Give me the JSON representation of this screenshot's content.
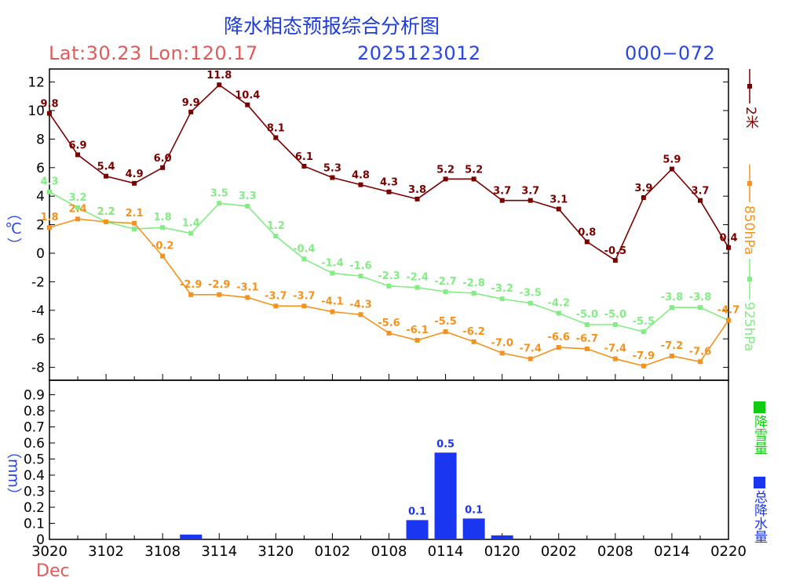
{
  "header": {
    "title": "降水相态预报综合分析图",
    "location": "Lat:30.23 Lon:120.17",
    "run": "2025123012",
    "range": "000−072"
  },
  "colors": {
    "t2m": "#7a0000",
    "t850": "#f5921e",
    "t925": "#84ec84",
    "snow": "#11cc11",
    "total": "#1a36f0",
    "title": "#1e3cdc",
    "loc": "#e05a5a"
  },
  "legend": {
    "t2m": "2米",
    "t850": "850hPa",
    "t925": "925hPa",
    "snow": "降雪量",
    "total": "总降水量"
  },
  "chart_data": [
    {
      "type": "line",
      "ylabel": "（℃）",
      "ylim": [
        -9,
        13
      ],
      "yticks": [
        12,
        10,
        8,
        6,
        4,
        2,
        0,
        -2,
        -4,
        -6,
        -8
      ],
      "x": [
        0,
        3,
        6,
        9,
        12,
        15,
        18,
        21,
        24,
        27,
        30,
        33,
        36,
        39,
        42,
        45,
        48,
        51,
        54,
        57,
        60,
        63,
        66,
        69,
        72
      ],
      "series": [
        {
          "name": "2米",
          "values": [
            9.8,
            6.9,
            5.4,
            4.9,
            6.0,
            9.9,
            11.8,
            10.4,
            8.1,
            6.1,
            5.3,
            4.8,
            4.3,
            3.8,
            5.2,
            5.2,
            3.7,
            3.7,
            3.1,
            0.8,
            -0.5,
            3.9,
            5.9,
            3.7,
            0.4
          ],
          "labels": [
            "9.8",
            "6.9",
            "5.4",
            "4.9",
            "6.0",
            "9.9",
            "11.8",
            "10.4",
            "8.1",
            "6.1",
            "5.3",
            "4.8",
            "4.3",
            "3.8",
            "5.2",
            "5.2",
            "3.7",
            "3.7",
            "3.1",
            "0.8",
            "-0.5",
            "3.9",
            "5.9",
            "3.7",
            "0.4"
          ]
        },
        {
          "name": "850hPa",
          "values": [
            1.8,
            2.4,
            2.2,
            2.1,
            -0.2,
            -2.9,
            -2.9,
            -3.1,
            -3.7,
            -3.7,
            -4.1,
            -4.3,
            -5.6,
            -6.1,
            -5.5,
            -6.2,
            -7.0,
            -7.4,
            -6.6,
            -6.7,
            -7.4,
            -7.9,
            -7.2,
            -7.6,
            -4.7
          ],
          "labels": [
            "1.8",
            "2.4",
            "2.2",
            "2.1",
            "-0.2",
            "-2.9",
            "-2.9",
            "-3.1",
            "-3.7",
            "-3.7",
            "-4.1",
            "-4.3",
            "-5.6",
            "-6.1",
            "-5.5",
            "-6.2",
            "-7.0",
            "-7.4",
            "-6.6",
            "-6.7",
            "-7.4",
            "-7.9",
            "-7.2",
            "-7.6",
            "-4.7"
          ]
        },
        {
          "name": "925hPa",
          "values": [
            4.3,
            3.2,
            2.2,
            1.7,
            1.8,
            1.4,
            3.5,
            3.3,
            1.2,
            -0.4,
            -1.4,
            -1.6,
            -2.3,
            -2.4,
            -2.7,
            -2.8,
            -3.2,
            -3.5,
            -4.2,
            -5.0,
            -5.0,
            -5.5,
            -3.8,
            -3.8,
            -4.7
          ],
          "labels": [
            "4.3",
            "3.2",
            "2.2",
            "",
            "1.8",
            "1.4",
            "3.5",
            "3.3",
            "1.2",
            "-0.4",
            "-1.4",
            "-1.6",
            "-2.3",
            "-2.4",
            "-2.7",
            "-2.8",
            "-3.2",
            "-3.5",
            "-4.2",
            "-5.0",
            "-5.0",
            "-5.5",
            "-3.8",
            "-3.8",
            ""
          ]
        }
      ]
    },
    {
      "type": "bar",
      "ylabel": "（mm）",
      "ylim": [
        0,
        1.0
      ],
      "yticks": [
        "0",
        "0.1",
        "0.2",
        "0.3",
        "0.4",
        "0.5",
        "0.6",
        "0.7",
        "0.8",
        "0.9"
      ],
      "xticks": [
        "3020",
        "3102",
        "3108",
        "3114",
        "3120",
        "0102",
        "0108",
        "0114",
        "0120",
        "0202",
        "0208",
        "0214",
        "0220"
      ],
      "month_label": "Dec",
      "series": [
        {
          "name": "总降水量",
          "bars": [
            {
              "x": 15,
              "value": 0.03,
              "label": ""
            },
            {
              "x": 39,
              "value": 0.12,
              "label": "0.1"
            },
            {
              "x": 42,
              "value": 0.54,
              "label": "0.5"
            },
            {
              "x": 45,
              "value": 0.13,
              "label": "0.1"
            },
            {
              "x": 48,
              "value": 0.025,
              "label": ""
            }
          ]
        }
      ]
    }
  ]
}
